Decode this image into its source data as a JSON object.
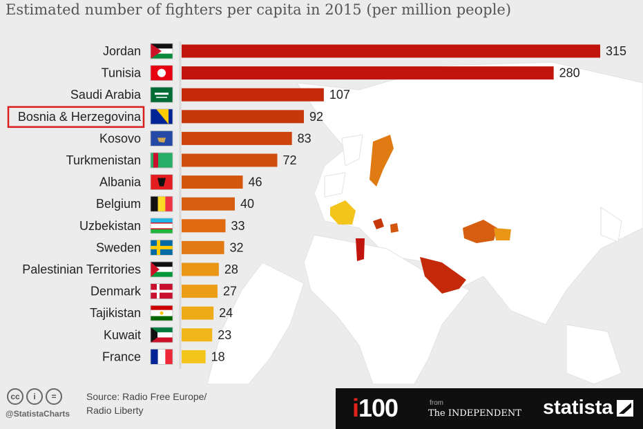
{
  "title": "Estimated number of fighters per capita in 2015 (per million people)",
  "chart_data": {
    "type": "bar",
    "orientation": "horizontal",
    "categories": [
      "Jordan",
      "Tunisia",
      "Saudi Arabia",
      "Bosnia & Herzegovina",
      "Kosovo",
      "Turkmenistan",
      "Albania",
      "Belgium",
      "Uzbekistan",
      "Sweden",
      "Palestinian Territories",
      "Denmark",
      "Tajikistan",
      "Kuwait",
      "France"
    ],
    "values": [
      315,
      280,
      107,
      92,
      83,
      72,
      46,
      40,
      33,
      32,
      28,
      27,
      24,
      23,
      18
    ],
    "colors": [
      "#c0140c",
      "#c0140c",
      "#c42a0a",
      "#c6380a",
      "#cc440b",
      "#cf4e0c",
      "#d4550d",
      "#d65e10",
      "#df6a12",
      "#e17a14",
      "#e99515",
      "#ec9e16",
      "#efaa17",
      "#f0b619",
      "#f3c51c"
    ],
    "highlighted": "Bosnia & Herzegovina",
    "flags": [
      "jordan",
      "tunisia",
      "saudi-arabia",
      "bosnia",
      "kosovo",
      "turkmenistan",
      "albania",
      "belgium",
      "uzbekistan",
      "sweden",
      "palestine",
      "denmark",
      "tajikistan",
      "kuwait",
      "france"
    ],
    "xlim": [
      0,
      315
    ],
    "grid": false,
    "legend": "none"
  },
  "footer": {
    "cc_icons": [
      "cc",
      "i",
      "="
    ],
    "handle": "@StatistaCharts",
    "source_line1": "Source: Radio Free Europe/",
    "source_line2": "Radio Liberty",
    "i100_prefix": "i",
    "i100_number": "100",
    "from": "from",
    "independent": "The INDEPENDENT",
    "statista": "statista"
  }
}
